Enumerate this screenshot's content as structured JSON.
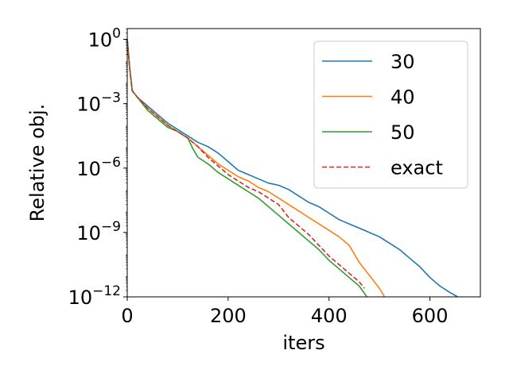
{
  "chart_data": {
    "type": "line",
    "title": "",
    "xlabel": "iters",
    "ylabel": "Relative obj.",
    "xlim": [
      0,
      700
    ],
    "ylim_log10": [
      -12,
      0.5
    ],
    "yscale": "log",
    "grid": false,
    "legend_position": "top-right",
    "x_ticks": [
      {
        "value": 0,
        "label": "0"
      },
      {
        "value": 200,
        "label": "200"
      },
      {
        "value": 400,
        "label": "400"
      },
      {
        "value": 600,
        "label": "600"
      }
    ],
    "y_ticks": [
      {
        "exp": 0,
        "base": "10",
        "sup": "0"
      },
      {
        "exp": -3,
        "base": "10",
        "sup": "−3"
      },
      {
        "exp": -6,
        "base": "10",
        "sup": "−6"
      },
      {
        "exp": -9,
        "base": "10",
        "sup": "−9"
      },
      {
        "exp": -12,
        "base": "10",
        "sup": "−12"
      }
    ],
    "series": [
      {
        "name": "30",
        "color": "#1f77b4",
        "dash": "solid",
        "x": [
          0,
          5,
          10,
          20,
          40,
          60,
          80,
          100,
          120,
          140,
          160,
          180,
          200,
          220,
          240,
          260,
          280,
          300,
          320,
          340,
          360,
          380,
          400,
          420,
          440,
          460,
          480,
          500,
          520,
          540,
          560,
          580,
          600,
          620,
          640,
          655
        ],
        "log10y": [
          0.0,
          -1.4,
          -2.4,
          -2.7,
          -3.1,
          -3.5,
          -3.9,
          -4.2,
          -4.5,
          -4.8,
          -5.0,
          -5.3,
          -5.7,
          -6.1,
          -6.3,
          -6.5,
          -6.7,
          -6.8,
          -7.0,
          -7.3,
          -7.6,
          -7.8,
          -8.1,
          -8.4,
          -8.6,
          -8.8,
          -9.0,
          -9.2,
          -9.5,
          -9.8,
          -10.2,
          -10.6,
          -11.1,
          -11.5,
          -11.8,
          -12.0
        ]
      },
      {
        "name": "40",
        "color": "#ff7f0e",
        "dash": "solid",
        "x": [
          0,
          5,
          10,
          20,
          40,
          60,
          80,
          100,
          120,
          140,
          160,
          180,
          200,
          220,
          240,
          260,
          280,
          300,
          320,
          340,
          360,
          380,
          400,
          420,
          440,
          460,
          480,
          500,
          510
        ],
        "log10y": [
          0.0,
          -1.4,
          -2.4,
          -2.7,
          -3.2,
          -3.6,
          -4.0,
          -4.3,
          -4.6,
          -5.0,
          -5.4,
          -5.8,
          -6.1,
          -6.4,
          -6.6,
          -6.9,
          -7.1,
          -7.4,
          -7.7,
          -8.0,
          -8.3,
          -8.6,
          -8.9,
          -9.2,
          -9.6,
          -10.4,
          -11.0,
          -11.6,
          -12.0
        ]
      },
      {
        "name": "50",
        "color": "#2ca02c",
        "dash": "solid",
        "x": [
          0,
          5,
          10,
          20,
          40,
          60,
          80,
          100,
          120,
          130,
          140,
          160,
          180,
          200,
          220,
          240,
          260,
          280,
          300,
          320,
          340,
          360,
          380,
          400,
          420,
          440,
          460,
          475
        ],
        "log10y": [
          0.0,
          -1.4,
          -2.4,
          -2.7,
          -3.3,
          -3.7,
          -4.1,
          -4.3,
          -4.6,
          -5.1,
          -5.5,
          -5.8,
          -6.2,
          -6.5,
          -6.8,
          -7.1,
          -7.4,
          -7.8,
          -8.2,
          -8.6,
          -9.0,
          -9.4,
          -9.8,
          -10.3,
          -10.7,
          -11.1,
          -11.5,
          -12.0
        ]
      },
      {
        "name": "exact",
        "color": "#d62728",
        "dash": "dashed",
        "x": [
          0,
          5,
          10,
          20,
          40,
          60,
          80,
          100,
          120,
          140,
          160,
          180,
          200,
          220,
          240,
          260,
          280,
          300,
          320,
          340,
          360,
          380,
          400,
          420,
          440,
          460,
          470
        ],
        "log10y": [
          0.0,
          -1.4,
          -2.4,
          -2.7,
          -3.2,
          -3.6,
          -4.0,
          -4.3,
          -4.6,
          -5.0,
          -5.5,
          -5.9,
          -6.3,
          -6.6,
          -6.9,
          -7.1,
          -7.4,
          -7.7,
          -8.3,
          -8.7,
          -9.1,
          -9.6,
          -10.1,
          -10.5,
          -10.9,
          -11.3,
          -11.6
        ]
      }
    ]
  }
}
